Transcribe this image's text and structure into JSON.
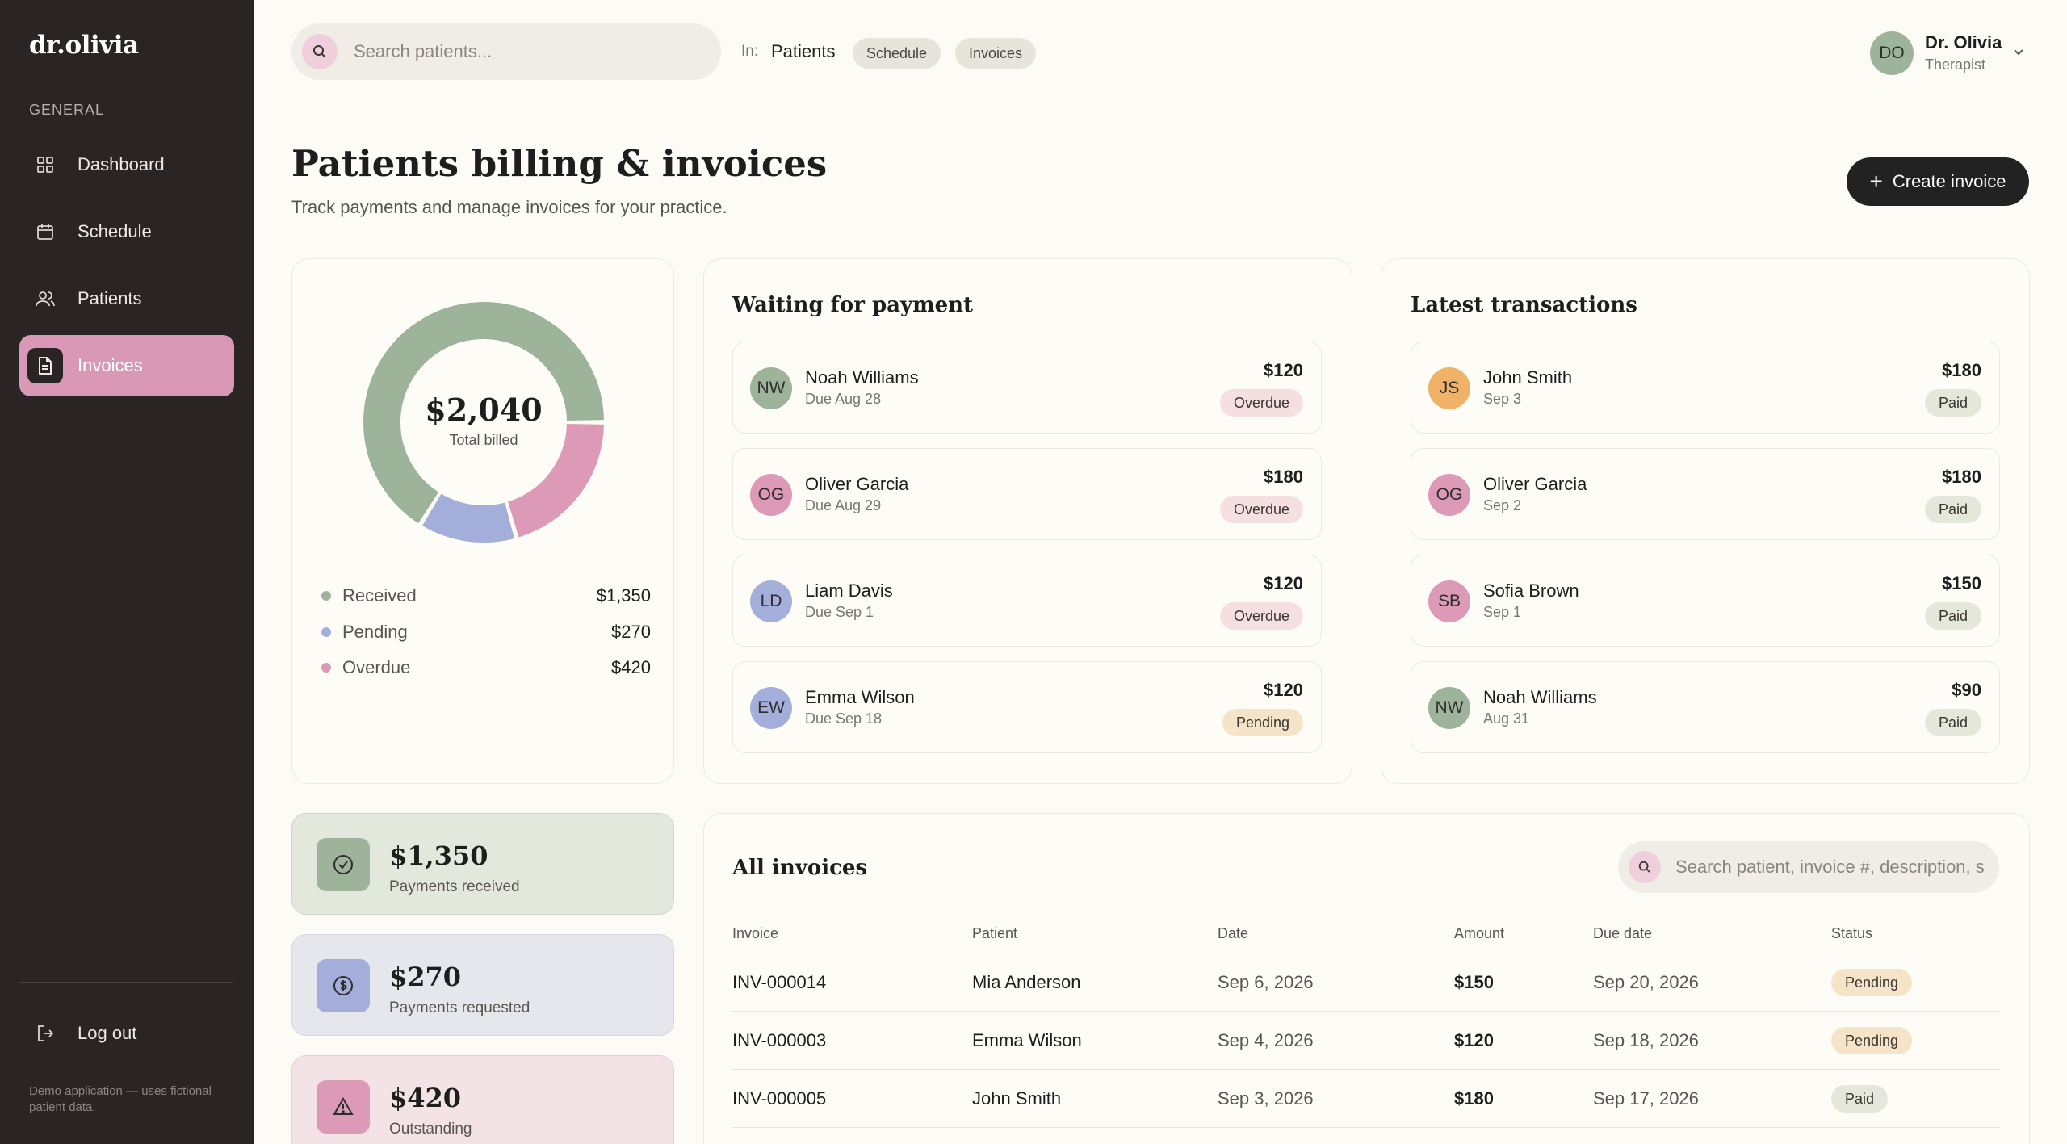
{
  "sidebar": {
    "logo": "dr.olivia",
    "section": "GENERAL",
    "items": [
      {
        "label": "Dashboard",
        "icon": "dashboard-icon"
      },
      {
        "label": "Schedule",
        "icon": "calendar-icon"
      },
      {
        "label": "Patients",
        "icon": "users-icon"
      },
      {
        "label": "Invoices",
        "icon": "document-icon",
        "active": true
      }
    ],
    "logout": "Log out",
    "note": "Demo application — uses fictional patient data."
  },
  "topbar": {
    "search_placeholder": "Search patients...",
    "in_label": "In:",
    "scope_active": "Patients",
    "scope_chips": [
      "Schedule",
      "Invoices"
    ],
    "user": {
      "initials": "DO",
      "name": "Dr. Olivia",
      "role": "Therapist"
    }
  },
  "header": {
    "title": "Patients billing & invoices",
    "subtitle": "Track payments and manage invoices for your practice.",
    "create_button": "Create invoice"
  },
  "summary": {
    "total": "$2,040",
    "total_label": "Total billed",
    "legend": [
      {
        "label": "Received",
        "value": "$1,350",
        "amount": 1350,
        "color": "#9db39a"
      },
      {
        "label": "Pending",
        "value": "$270",
        "amount": 270,
        "color": "#a3aedb"
      },
      {
        "label": "Overdue",
        "value": "$420",
        "amount": 420,
        "color": "#dd9ab6"
      }
    ]
  },
  "waiting": {
    "title": "Waiting for payment",
    "items": [
      {
        "initials": "NW",
        "name": "Noah Williams",
        "due": "Due Aug 28",
        "amount": "$120",
        "status": "Overdue",
        "color": "#9db39a"
      },
      {
        "initials": "OG",
        "name": "Oliver Garcia",
        "due": "Due Aug 29",
        "amount": "$180",
        "status": "Overdue",
        "color": "#dd9ab6"
      },
      {
        "initials": "LD",
        "name": "Liam Davis",
        "due": "Due Sep 1",
        "amount": "$120",
        "status": "Overdue",
        "color": "#a3aedb"
      },
      {
        "initials": "EW",
        "name": "Emma Wilson",
        "due": "Due Sep 18",
        "amount": "$120",
        "status": "Pending",
        "color": "#a3aedb"
      }
    ]
  },
  "latest": {
    "title": "Latest transactions",
    "items": [
      {
        "initials": "JS",
        "name": "John Smith",
        "date": "Sep 3",
        "amount": "$180",
        "status": "Paid",
        "color": "#f0b266"
      },
      {
        "initials": "OG",
        "name": "Oliver Garcia",
        "date": "Sep 2",
        "amount": "$180",
        "status": "Paid",
        "color": "#dd9ab6"
      },
      {
        "initials": "SB",
        "name": "Sofia Brown",
        "date": "Sep 1",
        "amount": "$150",
        "status": "Paid",
        "color": "#dd9ab6"
      },
      {
        "initials": "NW",
        "name": "Noah Williams",
        "date": "Aug 31",
        "amount": "$90",
        "status": "Paid",
        "color": "#9db39a"
      }
    ]
  },
  "stats": [
    {
      "value": "$1,350",
      "label": "Payments received",
      "icon": "check-circle-icon",
      "bg": "#e3e8dc",
      "icon_bg": "#9db39a"
    },
    {
      "value": "$270",
      "label": "Payments requested",
      "icon": "dollar-circle-icon",
      "bg": "#e6e7ec",
      "icon_bg": "#a3aedb"
    },
    {
      "value": "$420",
      "label": "Outstanding",
      "icon": "warning-icon",
      "bg": "#f4e3e6",
      "icon_bg": "#dd9ab6"
    }
  ],
  "invoices": {
    "title": "All invoices",
    "search_placeholder": "Search patient, invoice #, description, s",
    "columns": [
      "Invoice",
      "Patient",
      "Date",
      "Amount",
      "Due date",
      "Status"
    ],
    "rows": [
      {
        "id": "INV-000014",
        "patient": "Mia Anderson",
        "date": "Sep 6, 2026",
        "amount": "$150",
        "due": "Sep 20, 2026",
        "status": "Pending"
      },
      {
        "id": "INV-000003",
        "patient": "Emma Wilson",
        "date": "Sep 4, 2026",
        "amount": "$120",
        "due": "Sep 18, 2026",
        "status": "Pending"
      },
      {
        "id": "INV-000005",
        "patient": "John Smith",
        "date": "Sep 3, 2026",
        "amount": "$180",
        "due": "Sep 17, 2026",
        "status": "Paid"
      }
    ]
  }
}
